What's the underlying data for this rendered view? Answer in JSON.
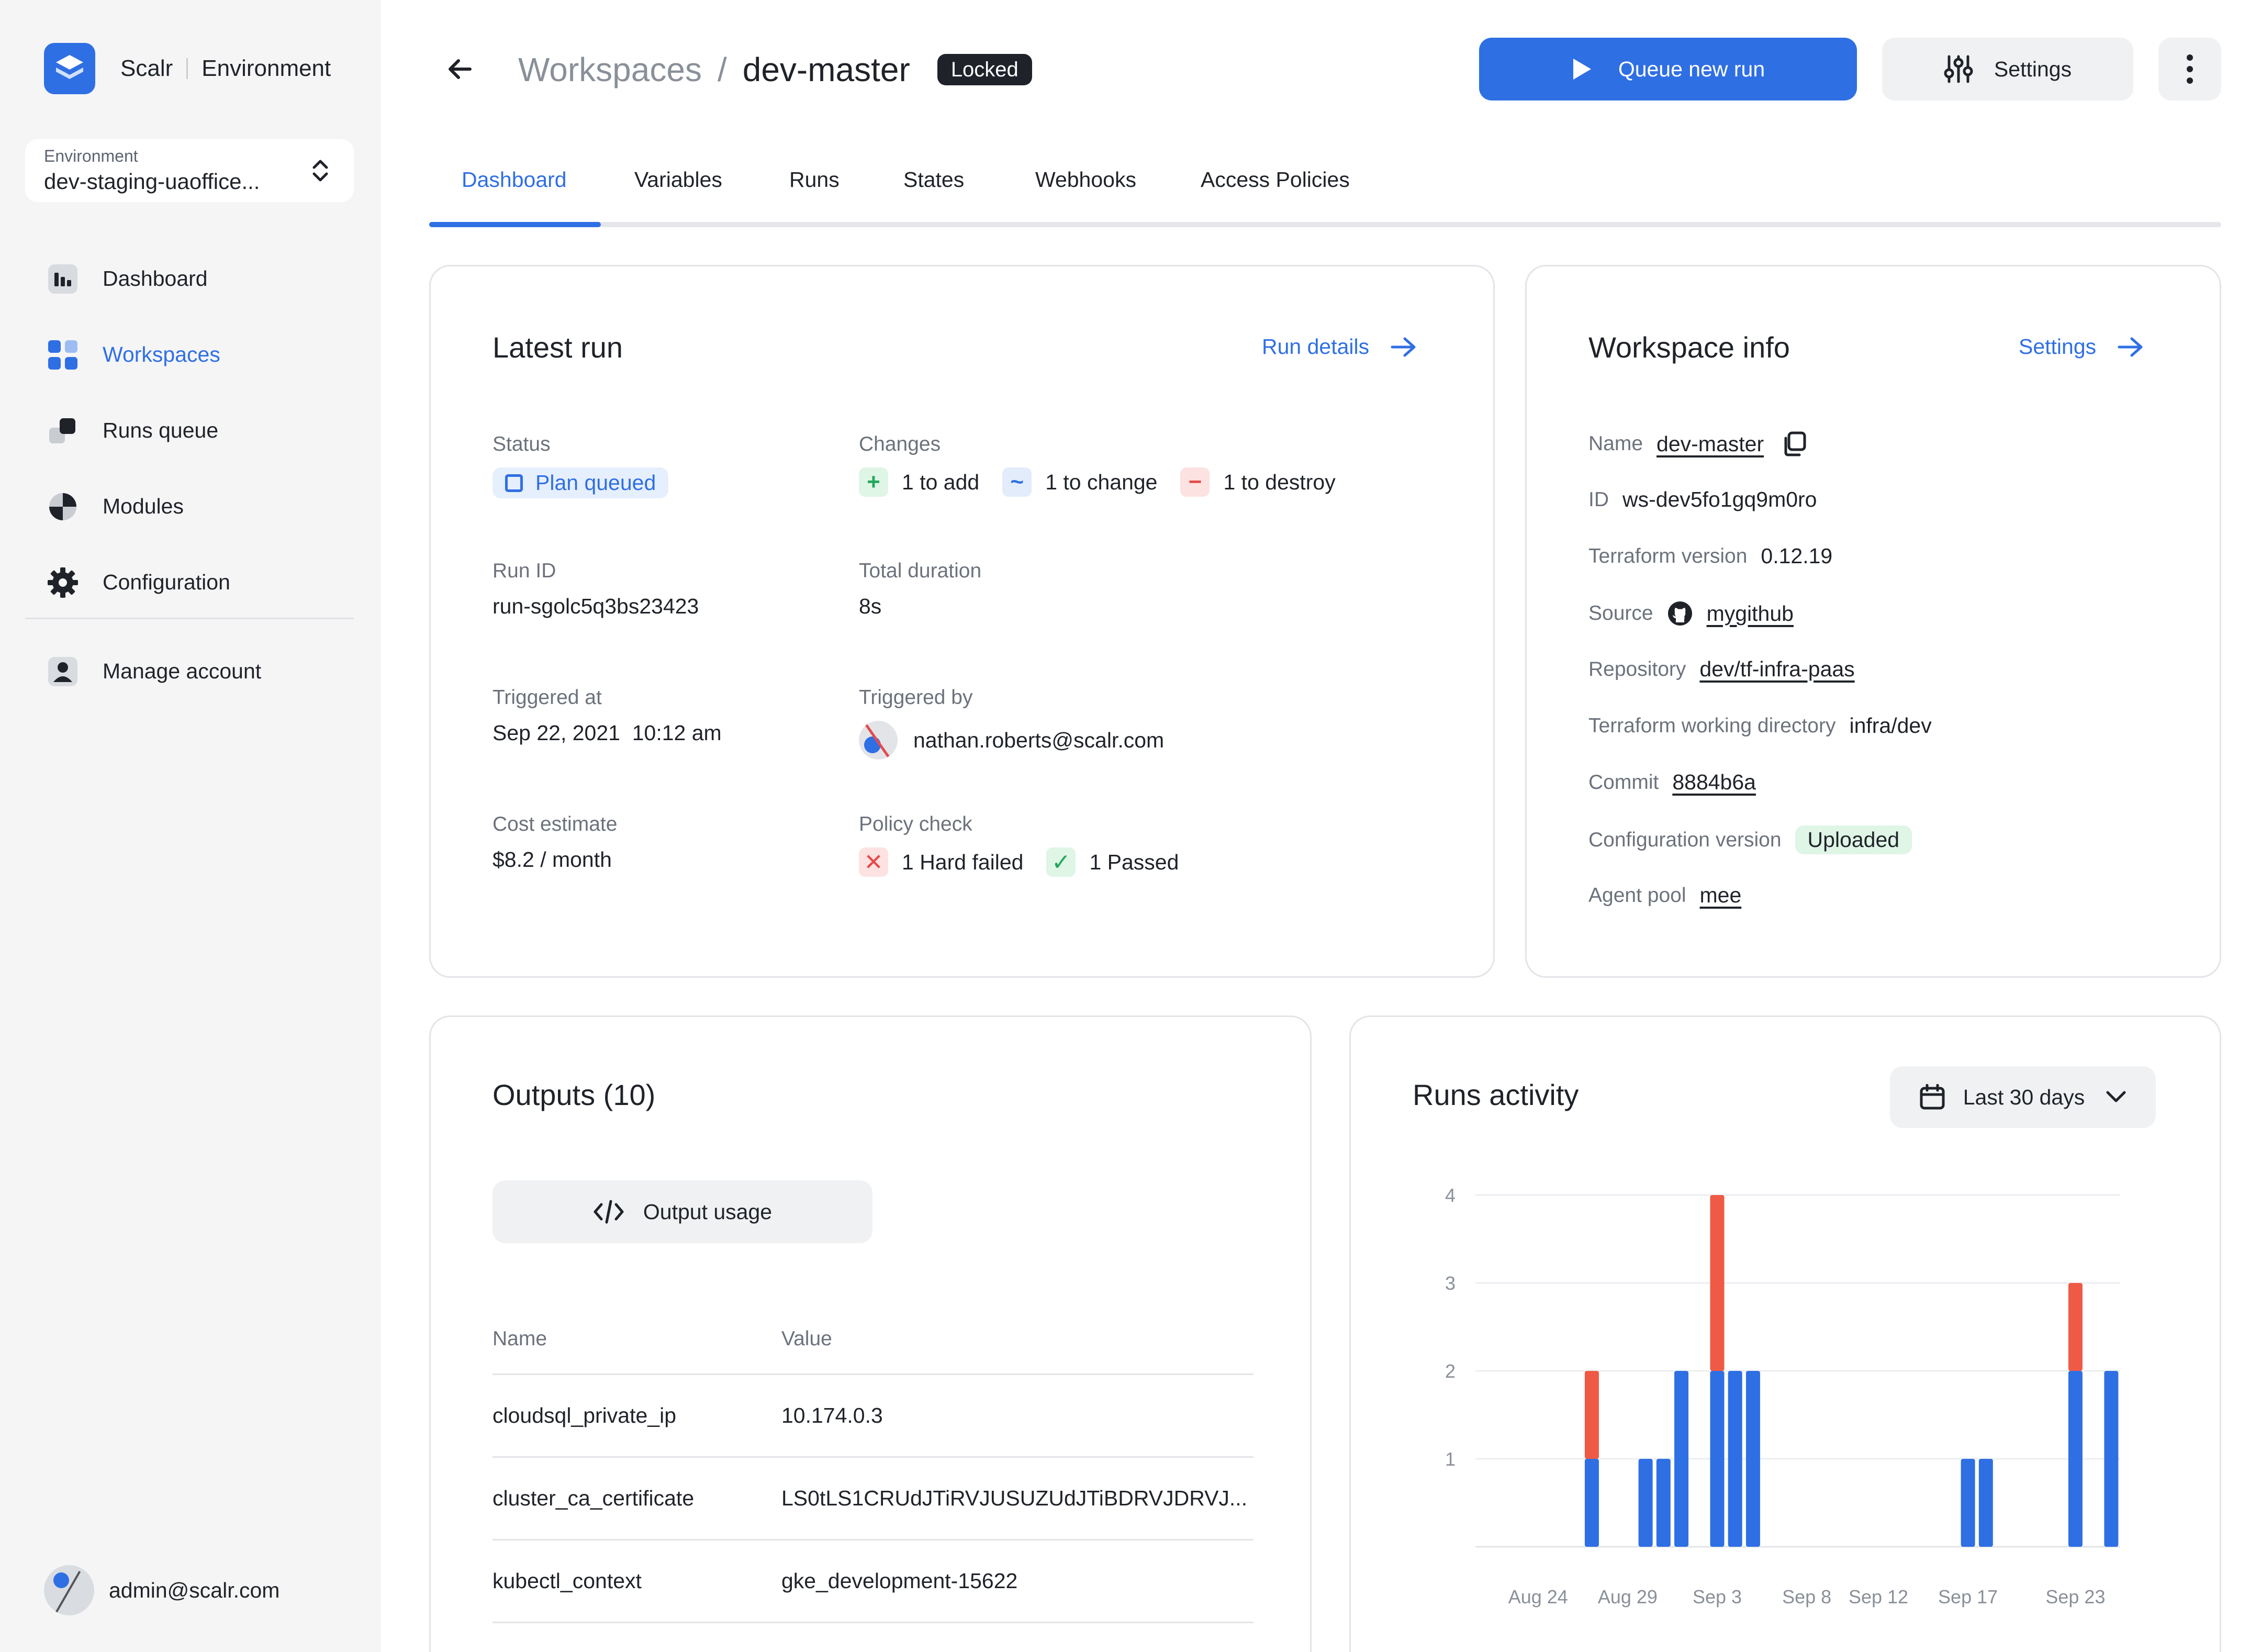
{
  "sidebar": {
    "brand": {
      "name": "Scalr",
      "context": "Environment"
    },
    "environment": {
      "label": "Environment",
      "value": "dev-staging-uaoffice..."
    },
    "items": [
      {
        "label": "Dashboard",
        "icon": "dashboard-icon"
      },
      {
        "label": "Workspaces",
        "icon": "workspaces-icon",
        "active": true
      },
      {
        "label": "Runs queue",
        "icon": "runs-queue-icon"
      },
      {
        "label": "Modules",
        "icon": "modules-icon"
      },
      {
        "label": "Configuration",
        "icon": "gear-icon"
      }
    ],
    "account": {
      "label": "Manage account",
      "icon": "user-icon"
    },
    "user": {
      "email": "admin@scalr.com"
    }
  },
  "header": {
    "breadcrumb_parent": "Workspaces",
    "breadcrumb_sep": "/",
    "title": "dev-master",
    "badge": "Locked",
    "queue_button": "Queue new run",
    "settings_button": "Settings"
  },
  "tabs": [
    "Dashboard",
    "Variables",
    "Runs",
    "States",
    "Webhooks",
    "Access Policies"
  ],
  "latest_run": {
    "title": "Latest run",
    "link": "Run details",
    "status_label": "Status",
    "status_value": "Plan queued",
    "changes_label": "Changes",
    "changes": {
      "add": "1 to add",
      "change": "1 to change",
      "destroy": "1 to destroy"
    },
    "run_id_label": "Run ID",
    "run_id": "run-sgolc5q3bs23423",
    "duration_label": "Total duration",
    "duration": "8s",
    "triggered_at_label": "Triggered at",
    "triggered_at": "Sep 22, 2021  10:12 am",
    "triggered_by_label": "Triggered by",
    "triggered_by": "nathan.roberts@scalr.com",
    "cost_label": "Cost estimate",
    "cost": "$8.2 / month",
    "policy_label": "Policy check",
    "policy": {
      "failed": "1 Hard failed",
      "passed": "1 Passed"
    }
  },
  "workspace_info": {
    "title": "Workspace info",
    "link": "Settings",
    "rows": {
      "name": {
        "k": "Name",
        "v": "dev-master"
      },
      "id": {
        "k": "ID",
        "v": "ws-dev5fo1gq9m0ro"
      },
      "tf_version": {
        "k": "Terraform version",
        "v": "0.12.19"
      },
      "source": {
        "k": "Source",
        "v": "mygithub"
      },
      "repository": {
        "k": "Repository",
        "v": "dev/tf-infra-paas"
      },
      "workdir": {
        "k": "Terraform working directory",
        "v": "infra/dev"
      },
      "commit": {
        "k": "Commit",
        "v": "8884b6a"
      },
      "config_version": {
        "k": "Configuration version",
        "v": "Uploaded"
      },
      "agent_pool": {
        "k": "Agent pool",
        "v": "mee"
      }
    }
  },
  "outputs": {
    "title": "Outputs (10)",
    "usage_button": "Output usage",
    "col_name": "Name",
    "col_value": "Value",
    "rows": [
      {
        "name": "cloudsql_private_ip",
        "value": "10.174.0.3"
      },
      {
        "name": "cluster_ca_certificate",
        "value": "LS0tLS1CRUdJTiRVJUSUZUdJTiBDRVJDRVJ..."
      },
      {
        "name": "kubectl_context",
        "value": "gke_development-15622"
      }
    ]
  },
  "runs_activity": {
    "title": "Runs activity",
    "range_button": "Last 30 days"
  },
  "colors": {
    "accent": "#2f6fe4",
    "success": "#22a85b",
    "failed": "#e44b4b"
  },
  "chart_data": {
    "type": "bar",
    "stacked": true,
    "ylim": [
      0,
      4
    ],
    "yticks": [
      1,
      2,
      3,
      4
    ],
    "grid": true,
    "xtick_labels": [
      "Aug 24",
      "Aug 29",
      "Sep 3",
      "Sep 8",
      "Sep 12",
      "Sep 17",
      "Sep 23"
    ],
    "x": [
      "Aug 21",
      "Aug 22",
      "Aug 23",
      "Aug 24",
      "Aug 25",
      "Aug 26",
      "Aug 27",
      "Aug 28",
      "Aug 29",
      "Aug 30",
      "Aug 31",
      "Sep 1",
      "Sep 2",
      "Sep 3",
      "Sep 4",
      "Sep 5",
      "Sep 6",
      "Sep 7",
      "Sep 8",
      "Sep 9",
      "Sep 10",
      "Sep 11",
      "Sep 12",
      "Sep 13",
      "Sep 14",
      "Sep 15",
      "Sep 16",
      "Sep 17",
      "Sep 18",
      "Sep 19",
      "Sep 20",
      "Sep 21",
      "Sep 22",
      "Sep 23",
      "Sep 24",
      "Sep 25"
    ],
    "series": [
      {
        "color": "#2f6fe4",
        "values": [
          0,
          0,
          0,
          0,
          0,
          0,
          1,
          0,
          0,
          1,
          1,
          2,
          0,
          2,
          2,
          2,
          0,
          0,
          0,
          0,
          0,
          0,
          0,
          0,
          0,
          0,
          0,
          1,
          1,
          0,
          0,
          0,
          0,
          2,
          0,
          2
        ]
      },
      {
        "color": "#ee5a45",
        "values": [
          0,
          0,
          0,
          0,
          0,
          0,
          1,
          0,
          0,
          0,
          0,
          0,
          0,
          2,
          0,
          0,
          0,
          0,
          0,
          0,
          0,
          0,
          0,
          0,
          0,
          0,
          0,
          0,
          0,
          0,
          0,
          0,
          0,
          1,
          0,
          0
        ]
      }
    ]
  }
}
